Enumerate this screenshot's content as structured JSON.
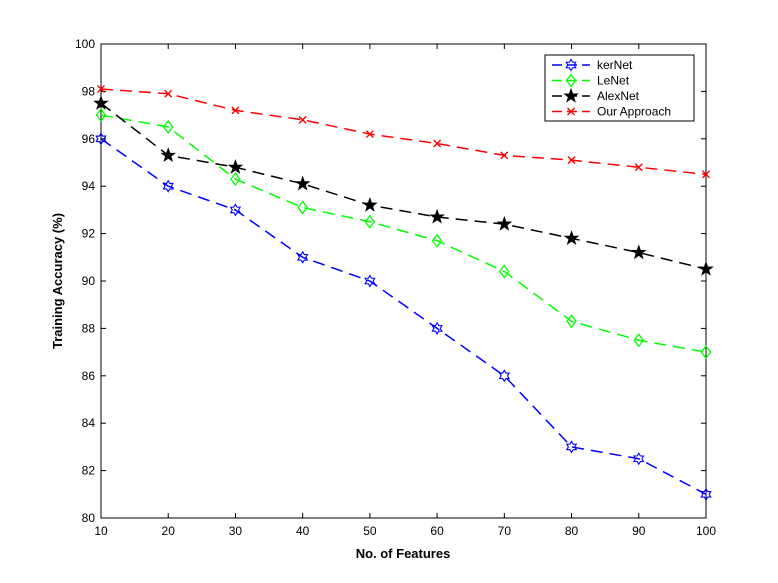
{
  "chart_data": {
    "type": "line",
    "xlabel": "No. of Features",
    "ylabel": "Training Accuracy (%)",
    "x": [
      10,
      20,
      30,
      40,
      50,
      60,
      70,
      80,
      90,
      100
    ],
    "xlim": [
      10,
      100
    ],
    "ylim": [
      80,
      100
    ],
    "xticks": [
      10,
      20,
      30,
      40,
      50,
      60,
      70,
      80,
      90,
      100
    ],
    "yticks": [
      80,
      82,
      84,
      86,
      88,
      90,
      92,
      94,
      96,
      98,
      100
    ],
    "grid": false,
    "legend_position": "top-right",
    "series": [
      {
        "name": "kerNet",
        "color": "#0000ff",
        "marker": "hexagram",
        "values": [
          96.0,
          94.0,
          93.0,
          91.0,
          90.0,
          88.0,
          86.0,
          83.0,
          82.5,
          81.0
        ]
      },
      {
        "name": "LeNet",
        "color": "#00ff00",
        "marker": "diamond",
        "values": [
          97.0,
          96.5,
          94.3,
          93.1,
          92.5,
          91.7,
          90.4,
          88.3,
          87.5,
          87.0
        ]
      },
      {
        "name": "AlexNet",
        "color": "#000000",
        "marker": "star",
        "values": [
          97.5,
          95.3,
          94.8,
          94.1,
          93.2,
          92.7,
          92.4,
          91.8,
          91.2,
          90.5
        ]
      },
      {
        "name": "Our Approach",
        "color": "#ff0000",
        "marker": "x",
        "values": [
          98.1,
          97.9,
          97.2,
          96.8,
          96.2,
          95.8,
          95.3,
          95.1,
          94.8,
          94.5
        ]
      }
    ]
  }
}
